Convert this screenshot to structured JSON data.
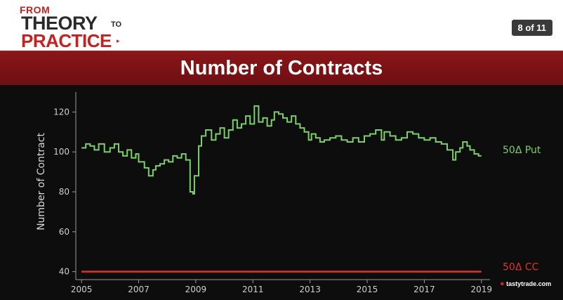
{
  "header": {
    "logo": {
      "from": "FROM",
      "theory": "THEORY",
      "to": "TO",
      "practice": "PRACTICE",
      "arrow": "▸"
    },
    "slide_counter": "8 of 11"
  },
  "banner": {
    "title": "Number of Contracts"
  },
  "brand": {
    "cherry": "●",
    "text": "tastytrade.com"
  },
  "colors": {
    "put": "#7ccf6a",
    "cc": "#e0332c",
    "banner": "#7c1316"
  },
  "chart_data": {
    "type": "line",
    "title": "Number of Contracts",
    "xlabel": "",
    "ylabel": "Number of Contract",
    "xlim": [
      2004.8,
      2019.3
    ],
    "ylim": [
      36,
      130
    ],
    "xticks": [
      "2005",
      "2007",
      "2009",
      "2011",
      "2013",
      "2015",
      "2017",
      "2019"
    ],
    "yticks": [
      "40",
      "60",
      "80",
      "100",
      "120"
    ],
    "grid": false,
    "legend": "inline-right",
    "series": [
      {
        "name": "50Δ Put",
        "step": true,
        "x": [
          2005.0,
          2005.15,
          2005.3,
          2005.45,
          2005.6,
          2005.8,
          2006.0,
          2006.15,
          2006.3,
          2006.45,
          2006.6,
          2006.75,
          2006.9,
          2007.0,
          2007.2,
          2007.35,
          2007.5,
          2007.6,
          2007.75,
          2007.9,
          2008.05,
          2008.2,
          2008.35,
          2008.5,
          2008.65,
          2008.8,
          2008.9,
          2008.95,
          2009.1,
          2009.2,
          2009.35,
          2009.55,
          2009.7,
          2009.85,
          2010.0,
          2010.15,
          2010.3,
          2010.45,
          2010.6,
          2010.75,
          2010.9,
          2011.05,
          2011.2,
          2011.35,
          2011.5,
          2011.65,
          2011.75,
          2011.9,
          2012.05,
          2012.2,
          2012.35,
          2012.5,
          2012.65,
          2012.8,
          2012.95,
          2013.05,
          2013.2,
          2013.35,
          2013.5,
          2013.7,
          2013.9,
          2014.1,
          2014.3,
          2014.5,
          2014.7,
          2014.9,
          2015.1,
          2015.3,
          2015.5,
          2015.6,
          2015.8,
          2016.0,
          2016.2,
          2016.4,
          2016.6,
          2016.8,
          2017.0,
          2017.2,
          2017.4,
          2017.6,
          2017.8,
          2018.0,
          2018.1,
          2018.25,
          2018.35,
          2018.5,
          2018.6,
          2018.75,
          2018.9,
          2019.0
        ],
        "values": [
          102,
          104,
          103,
          101,
          104,
          100,
          102,
          104,
          100,
          98,
          101,
          97,
          99,
          95,
          92,
          88,
          91,
          93,
          94,
          96,
          95,
          98,
          97,
          99,
          96,
          80,
          79,
          88,
          103,
          108,
          111,
          106,
          109,
          112,
          107,
          111,
          116,
          112,
          114,
          118,
          114,
          123,
          115,
          117,
          113,
          116,
          120,
          119,
          117,
          115,
          118,
          114,
          112,
          110,
          106,
          109,
          107,
          105,
          106,
          107,
          108,
          106,
          105,
          107,
          105,
          108,
          109,
          111,
          106,
          110,
          108,
          106,
          107,
          110,
          109,
          107,
          106,
          107,
          105,
          104,
          101,
          96,
          100,
          102,
          105,
          103,
          101,
          99,
          98,
          98
        ]
      },
      {
        "name": "50Δ CC",
        "step": false,
        "x": [
          2005.0,
          2019.0
        ],
        "values": [
          40,
          40
        ]
      }
    ]
  }
}
